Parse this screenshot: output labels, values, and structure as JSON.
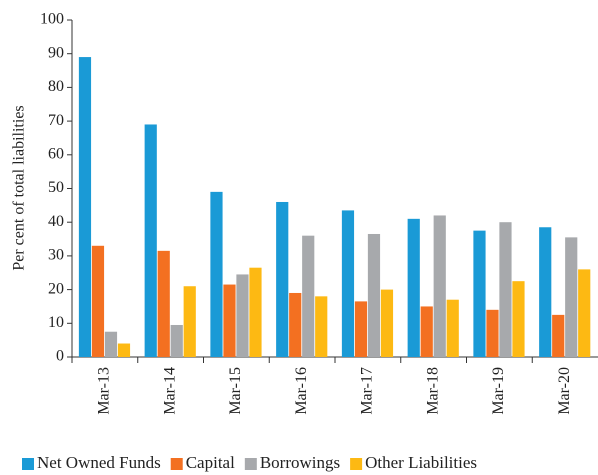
{
  "chart_data": {
    "type": "bar",
    "y_label": "Per cent of total liabilities",
    "categories": [
      "Mar-13",
      "Mar-14",
      "Mar-15",
      "Mar-16",
      "Mar-17",
      "Mar-18",
      "Mar-19",
      "Mar-20"
    ],
    "series": [
      {
        "name": "Net Owned Funds",
        "color": "#1a9ad6",
        "values": [
          89,
          69,
          49,
          46,
          43.5,
          41,
          37.5,
          38.5
        ]
      },
      {
        "name": "Capital",
        "color": "#f37021",
        "values": [
          33,
          31.5,
          21.5,
          19,
          16.5,
          15,
          14,
          12.5
        ]
      },
      {
        "name": "Borrowings",
        "color": "#a7a9ac",
        "values": [
          7.5,
          9.5,
          24.5,
          36,
          36.5,
          42,
          40,
          35.5
        ]
      },
      {
        "name": "Other Liabilities",
        "color": "#fdb913",
        "values": [
          4,
          21,
          26.5,
          18,
          20,
          17,
          22.5,
          26
        ]
      }
    ],
    "ylim": [
      0,
      100
    ],
    "yticks": [
      0,
      10,
      20,
      30,
      40,
      50,
      60,
      70,
      80,
      90,
      100
    ],
    "legend": "bottom"
  }
}
